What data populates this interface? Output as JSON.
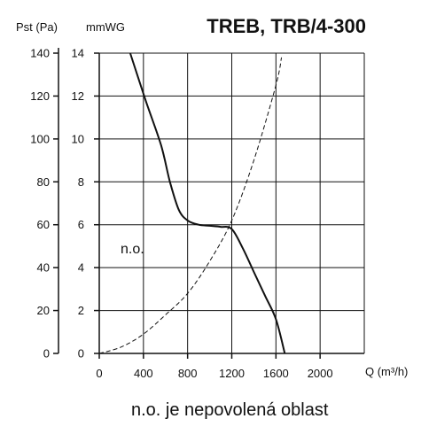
{
  "chart_data": {
    "type": "line",
    "title": "TREB, TRB/4-300",
    "xlabel": "Q (m³/h)",
    "ylabel_left": "Pst (Pa)",
    "ylabel_inner": "mmWG",
    "xlim": [
      0,
      2400
    ],
    "ylim_pa": [
      0,
      140
    ],
    "ylim_mmwg": [
      0,
      14
    ],
    "x_ticks": [
      "0",
      "400",
      "800",
      "1200",
      "1600",
      "2000"
    ],
    "y_ticks_pa": [
      "0",
      "20",
      "40",
      "60",
      "80",
      "100",
      "120",
      "140"
    ],
    "y_ticks_mmwg": [
      "0",
      "2",
      "4",
      "6",
      "8",
      "10",
      "12",
      "14"
    ],
    "grid": true,
    "series": [
      {
        "style": "solid",
        "x": [
          280,
          420,
          560,
          640,
          720,
          800,
          900,
          1000,
          1100,
          1200,
          1300,
          1400,
          1500,
          1600,
          1680
        ],
        "y": [
          140,
          118,
          97,
          80,
          67,
          62,
          60,
          59.5,
          59,
          58,
          49,
          38,
          27,
          16,
          0
        ]
      },
      {
        "style": "dashed",
        "x": [
          0,
          200,
          400,
          600,
          800,
          1000,
          1200,
          1400,
          1600,
          1650
        ],
        "y": [
          0,
          3,
          9,
          18,
          28,
          43,
          62,
          90,
          125,
          138
        ]
      }
    ],
    "annotations": [
      "n.o."
    ]
  },
  "footnote": "n.o. je nepovolená oblast"
}
